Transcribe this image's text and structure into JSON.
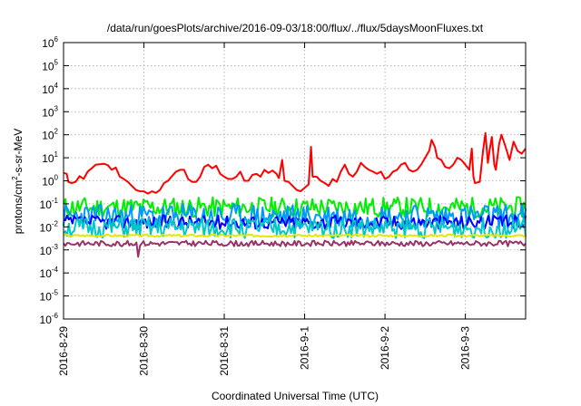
{
  "chart_data": {
    "type": "line",
    "title": "/data/run/goesPlots/archive/2016-09-03/18:00/flux/../flux/5daysMoonFluxes.txt",
    "xlabel": "Coordinated Universal Time (UTC)",
    "ylabel_parts": {
      "pre": "protons/cm",
      "sup": "2",
      "post": "-s-sr-MeV"
    },
    "yscale": "log",
    "ylim": [
      1e-06,
      1000000.0
    ],
    "y_ticks": [
      {
        "base": "10",
        "exp": "-6"
      },
      {
        "base": "10",
        "exp": "-5"
      },
      {
        "base": "10",
        "exp": "-4"
      },
      {
        "base": "10",
        "exp": "-3"
      },
      {
        "base": "10",
        "exp": "-2"
      },
      {
        "base": "10",
        "exp": "-1"
      },
      {
        "base": "10",
        "exp": "0"
      },
      {
        "base": "10",
        "exp": "1"
      },
      {
        "base": "10",
        "exp": "2"
      },
      {
        "base": "10",
        "exp": "3"
      },
      {
        "base": "10",
        "exp": "4"
      },
      {
        "base": "10",
        "exp": "5"
      },
      {
        "base": "10",
        "exp": "6"
      }
    ],
    "xlim": [
      "2016-8-29",
      "2016-9-3 18:00"
    ],
    "x_ticks": [
      "2016-8-29",
      "2016-8-30",
      "2016-8-31",
      "2016-9-1",
      "2016-9-2",
      "2016-9-3"
    ],
    "grid": true,
    "series": [
      {
        "color": "#ff0000",
        "points": [
          [
            0,
            2.2
          ],
          [
            0.04,
            2.0
          ],
          [
            0.06,
            0.9
          ],
          [
            0.1,
            0.8
          ],
          [
            0.15,
            0.9
          ],
          [
            0.2,
            1.6
          ],
          [
            0.25,
            1.2
          ],
          [
            0.3,
            2.5
          ],
          [
            0.35,
            3.5
          ],
          [
            0.4,
            5.0
          ],
          [
            0.5,
            5.5
          ],
          [
            0.55,
            4.8
          ],
          [
            0.6,
            3.0
          ],
          [
            0.65,
            3.8
          ],
          [
            0.7,
            1.5
          ],
          [
            0.75,
            1.2
          ],
          [
            0.8,
            0.9
          ],
          [
            0.85,
            0.6
          ],
          [
            0.9,
            0.4
          ],
          [
            0.95,
            0.35
          ],
          [
            1.0,
            0.35
          ],
          [
            1.05,
            0.28
          ],
          [
            1.1,
            0.35
          ],
          [
            1.15,
            0.3
          ],
          [
            1.2,
            0.4
          ],
          [
            1.25,
            0.8
          ],
          [
            1.3,
            1.0
          ],
          [
            1.35,
            1.6
          ],
          [
            1.4,
            2.5
          ],
          [
            1.45,
            3.0
          ],
          [
            1.5,
            3.0
          ],
          [
            1.55,
            1.2
          ],
          [
            1.6,
            0.9
          ],
          [
            1.65,
            0.9
          ],
          [
            1.7,
            1.5
          ],
          [
            1.75,
            4.0
          ],
          [
            1.8,
            5.0
          ],
          [
            1.85,
            3.5
          ],
          [
            1.9,
            4.5
          ],
          [
            1.95,
            2.0
          ],
          [
            2.0,
            1.5
          ],
          [
            2.05,
            1.2
          ],
          [
            2.1,
            1.2
          ],
          [
            2.15,
            1.5
          ],
          [
            2.2,
            2.5
          ],
          [
            2.25,
            1.0
          ],
          [
            2.3,
            1.0
          ],
          [
            2.35,
            1.8
          ],
          [
            2.4,
            2.0
          ],
          [
            2.45,
            1.5
          ],
          [
            2.5,
            3.0
          ],
          [
            2.55,
            2.2
          ],
          [
            2.6,
            2.8
          ],
          [
            2.65,
            2.0
          ],
          [
            2.68,
            1.3
          ],
          [
            2.72,
            8.0
          ],
          [
            2.75,
            1.0
          ],
          [
            2.8,
            0.9
          ],
          [
            2.85,
            0.6
          ],
          [
            2.9,
            0.4
          ],
          [
            2.95,
            0.35
          ],
          [
            3.0,
            0.5
          ],
          [
            3.05,
            0.7
          ],
          [
            3.08,
            30
          ],
          [
            3.1,
            1.5
          ],
          [
            3.15,
            1.5
          ],
          [
            3.2,
            1.0
          ],
          [
            3.25,
            0.8
          ],
          [
            3.3,
            0.6
          ],
          [
            3.35,
            1.2
          ],
          [
            3.4,
            0.9
          ],
          [
            3.45,
            2.5
          ],
          [
            3.5,
            5.0
          ],
          [
            3.55,
            2.0
          ],
          [
            3.6,
            1.5
          ],
          [
            3.65,
            2.5
          ],
          [
            3.7,
            6.0
          ],
          [
            3.75,
            4.0
          ],
          [
            3.8,
            3.0
          ],
          [
            3.85,
            2.5
          ],
          [
            3.9,
            2.0
          ],
          [
            3.95,
            2.5
          ],
          [
            4.0,
            1.2
          ],
          [
            4.05,
            1.5
          ],
          [
            4.1,
            2.5
          ],
          [
            4.15,
            3.0
          ],
          [
            4.2,
            5.0
          ],
          [
            4.25,
            6.0
          ],
          [
            4.3,
            3.0
          ],
          [
            4.35,
            2.5
          ],
          [
            4.4,
            3.0
          ],
          [
            4.45,
            5.0
          ],
          [
            4.5,
            10
          ],
          [
            4.55,
            20
          ],
          [
            4.58,
            60
          ],
          [
            4.62,
            30
          ],
          [
            4.65,
            10
          ],
          [
            4.7,
            8.0
          ],
          [
            4.75,
            4.0
          ],
          [
            4.8,
            3.5
          ],
          [
            4.85,
            5.0
          ],
          [
            4.9,
            10
          ],
          [
            4.95,
            8.0
          ],
          [
            5.0,
            5.0
          ],
          [
            5.05,
            3.0
          ],
          [
            5.08,
            25
          ],
          [
            5.1,
            1.5
          ],
          [
            5.12,
            0.8
          ],
          [
            5.18,
            0.9
          ],
          [
            5.22,
            20
          ],
          [
            5.25,
            120
          ],
          [
            5.28,
            6.0
          ],
          [
            5.3,
            20
          ],
          [
            5.33,
            80
          ],
          [
            5.36,
            5.0
          ],
          [
            5.38,
            3.0
          ],
          [
            5.42,
            40
          ],
          [
            5.45,
            100
          ],
          [
            5.5,
            30
          ],
          [
            5.55,
            8.0
          ],
          [
            5.6,
            50
          ],
          [
            5.65,
            20
          ],
          [
            5.7,
            15
          ],
          [
            5.75,
            25
          ]
        ]
      },
      {
        "color": "#00ee00",
        "base": 0.07,
        "amp": 0.45,
        "seed": 11
      },
      {
        "color": "#0099ff",
        "base": 0.028,
        "amp": 0.55,
        "seed": 23
      },
      {
        "color": "#0000ff",
        "base": 0.016,
        "amp": 0.3,
        "seed": 37
      },
      {
        "color": "#00c8c8",
        "base": 0.009,
        "amp": 0.45,
        "seed": 51
      },
      {
        "color": "#e6e600",
        "base": 0.0042,
        "amp": 0.05,
        "seed": 67
      },
      {
        "color": "#993366",
        "base": 0.0019,
        "amp": 0.12,
        "seed": 83,
        "dip": [
          0.92,
          0.0005
        ]
      }
    ]
  }
}
